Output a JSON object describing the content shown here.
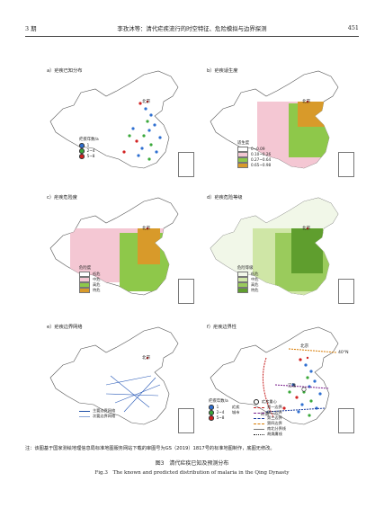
{
  "header": {
    "issue": "3 期",
    "title": "李孜沐等：清代疟疾流行的时空特征、危险模拟与边界探测",
    "page": "451"
  },
  "capital_label": "北京",
  "colors": {
    "boundary": "#555555",
    "suit_0": "#ffffff",
    "suit_1": "#f4c7d3",
    "suit_2": "#8ec84a",
    "suit_3": "#d89a2a",
    "risk_low": "#f1f7e8",
    "risk_mid": "#cfe6a6",
    "risk_high": "#9acb5c",
    "risk_very": "#5f9e2e",
    "case_1": "#2e6fd1",
    "case_2": "#3aa83a",
    "case_3": "#d22222"
  },
  "panels": {
    "a": {
      "label": "a）疟疾已知分布",
      "legend_title": "疟疾年数/a",
      "legend": [
        "1",
        "2~4",
        "5~8"
      ]
    },
    "b": {
      "label": "b）疟疾适生度",
      "legend_title": "适生度",
      "legend": [
        "0~0.09",
        "0.10~0.26",
        "0.27~0.64",
        "0.65~0.98"
      ]
    },
    "c": {
      "label": "c）疟疾危险度",
      "legend_title": "危险度",
      "legend": [
        "低危",
        "中危",
        "高危",
        "特危"
      ]
    },
    "d": {
      "label": "d）疟疾危险等级",
      "legend_title": "危险等级",
      "legend": [
        "低危",
        "中危",
        "高危",
        "特危"
      ]
    },
    "e": {
      "label": "e）疟疾边界网络",
      "legend": [
        "主要边界网络",
        "次要边界网络"
      ]
    },
    "f": {
      "label": "f）疟疾边界性",
      "lat_label": "40°N",
      "label_jianghuai": "江淮",
      "label_lingnan": "岭南",
      "legend_title_left": "疟疾年数/a",
      "legend_title_mid": "疟疾",
      "legend_title_mid2": "城市",
      "legend_cases": [
        "1",
        "2~4",
        "5~8"
      ],
      "legend_right": [
        "疟疾重心",
        "第一边界",
        "第二边界",
        "第三边界",
        "第四边界",
        "南北分界线",
        "胡焕庸线"
      ]
    }
  },
  "note": "注：该图基于国家测绘地理信息局标准地图服务网站下载的审图号为GS（2019）1817号的标准地图制作，底图无修改。",
  "caption_cn": "图3　清代疟疾已知及预测分布",
  "caption_en": "Fig.3　The known and predicted distribution of malaria in the Qing Dynasty"
}
